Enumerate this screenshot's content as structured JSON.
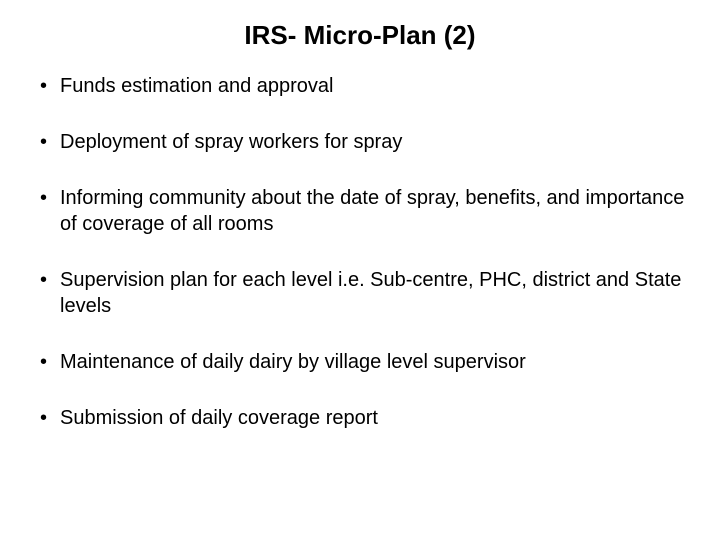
{
  "slide": {
    "title": "IRS- Micro-Plan (2)",
    "background_color": "#ffffff",
    "title_fontsize": 26,
    "title_fontweight": "bold",
    "body_fontsize": 20,
    "text_color": "#000000",
    "bullets": [
      "Funds estimation and approval",
      "Deployment of spray workers for spray",
      "Informing community about the date of spray, benefits, and importance of coverage of all rooms",
      "Supervision plan for each level i.e. Sub-centre, PHC, district and State levels",
      "Maintenance of daily dairy by village level supervisor",
      "Submission of daily coverage report"
    ]
  }
}
